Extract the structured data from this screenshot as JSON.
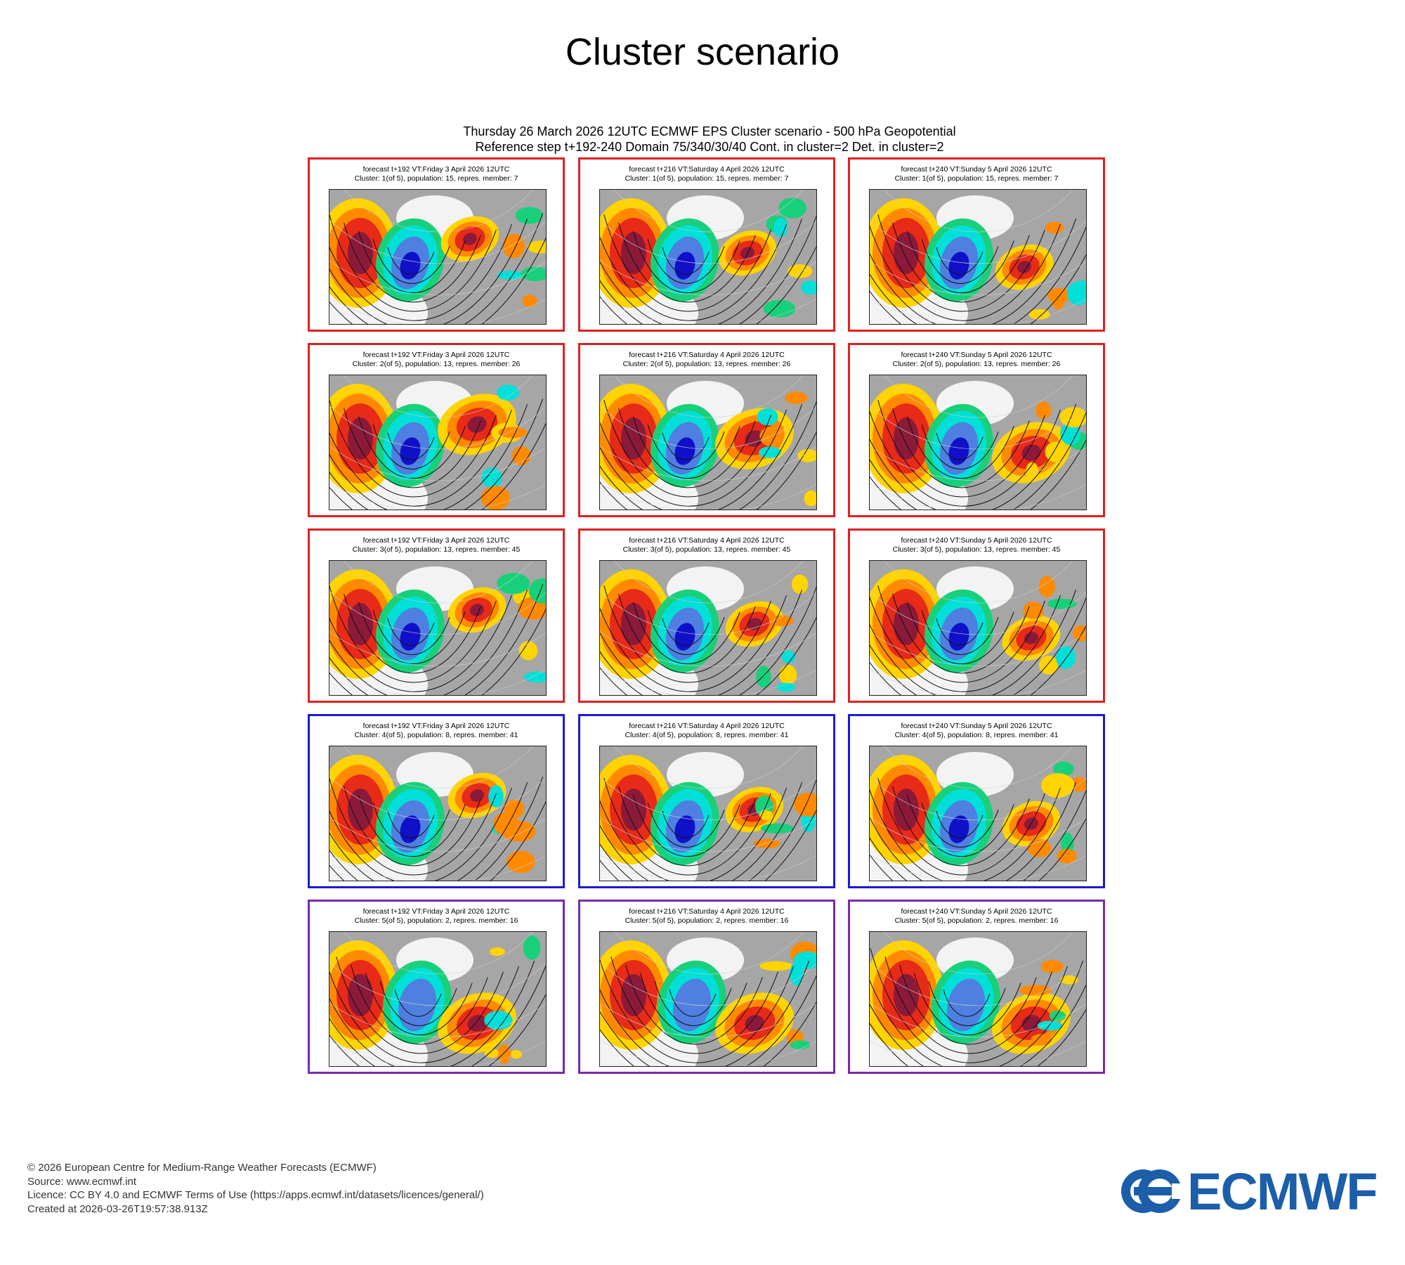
{
  "page": {
    "title": "Cluster scenario",
    "header_line1": "Thursday 26 March 2026 12UTC ECMWF EPS Cluster scenario - 500 hPa Geopotential",
    "header_line2": "Reference step t+192-240 Domain 75/340/30/40 Cont. in cluster=2 Det. in cluster=2"
  },
  "border_colors": {
    "cluster1": "#e02020",
    "cluster2": "#e02020",
    "cluster3": "#e02020",
    "cluster4": "#1a1ad8",
    "cluster5": "#7a2aa8"
  },
  "anomaly_colors": {
    "strong_positive": "#8b1a3a",
    "positive": "#e82a18",
    "weak_positive": "#ff8a00",
    "slight_positive": "#ffd400",
    "neutral": "#a6a6a6",
    "slight_negative": "#19d07a",
    "weak_negative": "#00e0d8",
    "negative": "#4f7fe0",
    "strong_negative": "#1010c8"
  },
  "chart_data": {
    "type": "map-grid",
    "title": "Cluster scenario",
    "subtitle": "Thursday 26 March 2026 12UTC ECMWF EPS Cluster scenario - 500 hPa Geopotential",
    "panels": [
      {
        "line1": "forecast t+192 VT:Friday 3 April 2026 12UTC",
        "line2": "Cluster: 1(of 5), population: 15, repres. member: 7",
        "cluster": 1,
        "step": 192
      },
      {
        "line1": "forecast t+216 VT:Saturday 4 April 2026 12UTC",
        "line2": "Cluster: 1(of 5), population: 15, repres. member: 7",
        "cluster": 1,
        "step": 216
      },
      {
        "line1": "forecast t+240 VT:Sunday 5 April 2026 12UTC",
        "line2": "Cluster: 1(of 5), population: 15, repres. member: 7",
        "cluster": 1,
        "step": 240
      },
      {
        "line1": "forecast t+192 VT:Friday 3 April 2026 12UTC",
        "line2": "Cluster: 2(of 5), population: 13, repres. member: 26",
        "cluster": 2,
        "step": 192
      },
      {
        "line1": "forecast t+216 VT:Saturday 4 April 2026 12UTC",
        "line2": "Cluster: 2(of 5), population: 13, repres. member: 26",
        "cluster": 2,
        "step": 216
      },
      {
        "line1": "forecast t+240 VT:Sunday 5 April 2026 12UTC",
        "line2": "Cluster: 2(of 5), population: 13, repres. member: 26",
        "cluster": 2,
        "step": 240
      },
      {
        "line1": "forecast t+192 VT:Friday 3 April 2026 12UTC",
        "line2": "Cluster: 3(of 5), population: 13, repres. member: 45",
        "cluster": 3,
        "step": 192
      },
      {
        "line1": "forecast t+216 VT:Saturday 4 April 2026 12UTC",
        "line2": "Cluster: 3(of 5), population: 13, repres. member: 45",
        "cluster": 3,
        "step": 216
      },
      {
        "line1": "forecast t+240 VT:Sunday 5 April 2026 12UTC",
        "line2": "Cluster: 3(of 5), population: 13, repres. member: 45",
        "cluster": 3,
        "step": 240
      },
      {
        "line1": "forecast t+192 VT:Friday 3 April 2026 12UTC",
        "line2": "Cluster: 4(of 5), population: 8, repres. member: 41",
        "cluster": 4,
        "step": 192
      },
      {
        "line1": "forecast t+216 VT:Saturday 4 April 2026 12UTC",
        "line2": "Cluster: 4(of 5), population: 8, repres. member: 41",
        "cluster": 4,
        "step": 216
      },
      {
        "line1": "forecast t+240 VT:Sunday 5 April 2026 12UTC",
        "line2": "Cluster: 4(of 5), population: 8, repres. member: 41",
        "cluster": 4,
        "step": 240
      },
      {
        "line1": "forecast t+192 VT:Friday 3 April 2026 12UTC",
        "line2": "Cluster: 5(of 5), population: 2, repres. member: 16",
        "cluster": 5,
        "step": 192
      },
      {
        "line1": "forecast t+216 VT:Saturday 4 April 2026 12UTC",
        "line2": "Cluster: 5(of 5), population: 2, repres. member: 16",
        "cluster": 5,
        "step": 216
      },
      {
        "line1": "forecast t+240 VT:Sunday 5 April 2026 12UTC",
        "line2": "Cluster: 5(of 5), population: 2, repres. member: 16",
        "cluster": 5,
        "step": 240
      }
    ]
  },
  "footer": {
    "copyright": "© 2026 European Centre for Medium-Range Weather Forecasts (ECMWF)",
    "source": "Source: www.ecmwf.int",
    "licence": "Licence: CC BY 4.0 and ECMWF Terms of Use (https://apps.ecmwf.int/datasets/licences/general/)",
    "created": "Created at 2026-03-26T19:57:38.913Z"
  },
  "logo": {
    "text": "ECMWF",
    "color": "#1c5ea9"
  }
}
